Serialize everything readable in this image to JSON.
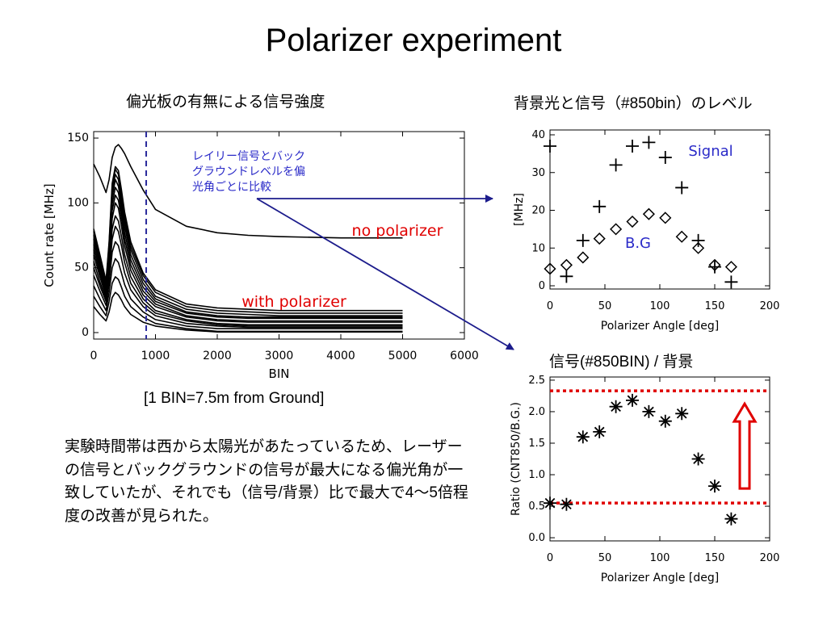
{
  "slide": {
    "title": "Polarizer experiment",
    "left_heading": "偏光板の有無による信号強度",
    "right_heading": "背景光と信号（#850bin）のレベル",
    "ratio_heading": "信号(#850BIN)  /  背景",
    "bin_note": "[1 BIN=7.5m from Ground]",
    "body_text": "実験時間帯は西から太陽光があたっているため、レーザーの信号とバックグラウンドの信号が最大になる偏光角が一致していたが、それでも（信号/背景）比で最大で4～5倍程度の改善が見られた。"
  },
  "chart_data": [
    {
      "id": "count-rate",
      "type": "line",
      "xlabel": "BIN",
      "ylabel": "Count rate [MHz]",
      "xlim": [
        0,
        6000
      ],
      "ylim": [
        -5,
        155
      ],
      "xticks": [
        0,
        1000,
        2000,
        3000,
        4000,
        5000,
        6000
      ],
      "yticks": [
        0,
        50,
        100,
        150
      ],
      "x": [
        0,
        100,
        200,
        250,
        300,
        350,
        400,
        450,
        500,
        600,
        800,
        1000,
        1500,
        2000,
        2500,
        3000,
        4000,
        5000
      ],
      "reference_line_bin": 850,
      "annotations": {
        "comparison": "レイリー信号とバックグラウンドレベルを偏光角ごとに比較",
        "no_polarizer": "no polarizer",
        "with_polarizer": "with polarizer"
      },
      "series": [
        {
          "values": [
            130,
            120,
            108,
            118,
            135,
            143,
            145,
            142,
            138,
            128,
            110,
            95,
            82,
            77,
            75,
            74,
            73,
            73
          ]
        },
        {
          "values": [
            80,
            60,
            40,
            70,
            115,
            128,
            125,
            110,
            93,
            70,
            46,
            33,
            22,
            19,
            18,
            17,
            17,
            17
          ]
        },
        {
          "values": [
            78,
            58,
            38,
            68,
            112,
            126,
            122,
            106,
            90,
            67,
            44,
            31,
            20,
            17,
            16,
            15,
            15,
            15
          ]
        },
        {
          "values": [
            75,
            55,
            36,
            65,
            108,
            122,
            118,
            102,
            86,
            64,
            41,
            28,
            18,
            15,
            14,
            13,
            13,
            13
          ]
        },
        {
          "values": [
            72,
            52,
            34,
            62,
            104,
            118,
            113,
            98,
            82,
            60,
            38,
            26,
            16,
            13,
            12,
            12,
            12,
            12
          ]
        },
        {
          "values": [
            68,
            49,
            32,
            59,
            99,
            112,
            108,
            93,
            77,
            56,
            35,
            24,
            15,
            12,
            11,
            11,
            11,
            11
          ]
        },
        {
          "values": [
            64,
            46,
            30,
            55,
            94,
            106,
            102,
            88,
            72,
            52,
            32,
            22,
            13,
            10,
            9,
            9,
            9,
            9
          ]
        },
        {
          "values": [
            60,
            43,
            28,
            52,
            88,
            100,
            96,
            82,
            67,
            48,
            29,
            20,
            12,
            9,
            8,
            8,
            8,
            8
          ]
        },
        {
          "values": [
            55,
            39,
            26,
            47,
            80,
            90,
            86,
            74,
            60,
            43,
            26,
            17,
            10,
            7,
            6,
            6,
            6,
            6
          ]
        },
        {
          "values": [
            50,
            36,
            24,
            43,
            72,
            82,
            78,
            67,
            54,
            38,
            23,
            15,
            9,
            6,
            5,
            5,
            5,
            5
          ]
        },
        {
          "values": [
            44,
            32,
            21,
            38,
            62,
            70,
            67,
            57,
            46,
            33,
            20,
            13,
            7,
            5,
            4,
            4,
            4,
            4
          ]
        },
        {
          "values": [
            36,
            26,
            17,
            31,
            50,
            57,
            54,
            46,
            37,
            26,
            16,
            10,
            5,
            3,
            3,
            3,
            3,
            3
          ]
        },
        {
          "values": [
            28,
            20,
            13,
            24,
            38,
            43,
            41,
            35,
            28,
            20,
            12,
            7,
            3,
            1,
            1,
            1,
            1,
            1
          ]
        },
        {
          "values": [
            20,
            14,
            9,
            16,
            27,
            31,
            29,
            25,
            20,
            14,
            8,
            5,
            2,
            0.5,
            0.5,
            0.5,
            0.5,
            0.5
          ]
        }
      ]
    },
    {
      "id": "levels",
      "type": "scatter",
      "xlabel": "Polarizer Angle [deg]",
      "ylabel": "[MHz]",
      "xlim": [
        0,
        200
      ],
      "ylim": [
        0,
        40
      ],
      "xticks": [
        0,
        50,
        100,
        150,
        200
      ],
      "yticks": [
        0,
        10,
        20,
        30,
        40
      ],
      "series": [
        {
          "name": "Signal",
          "marker": "plus",
          "x": [
            0,
            15,
            30,
            45,
            60,
            75,
            90,
            105,
            120,
            135,
            150,
            165
          ],
          "y": [
            37,
            2.5,
            12,
            21,
            32,
            37,
            38,
            34,
            26,
            12,
            5,
            1
          ]
        },
        {
          "name": "B.G",
          "marker": "diamond",
          "x": [
            0,
            15,
            30,
            45,
            60,
            75,
            90,
            105,
            120,
            135,
            150,
            165
          ],
          "y": [
            4.5,
            5.5,
            7.5,
            12.5,
            15,
            17,
            19,
            18,
            13,
            10,
            5.5,
            5
          ]
        }
      ]
    },
    {
      "id": "ratio",
      "type": "scatter",
      "xlabel": "Polarizer Angle [deg]",
      "ylabel": "Ratio (CNT850/B.G.)",
      "xlim": [
        0,
        200
      ],
      "ylim": [
        -0.05,
        2.55
      ],
      "xticks": [
        0,
        50,
        100,
        150,
        200
      ],
      "yticks": [
        0.0,
        0.5,
        1.0,
        1.5,
        2.0,
        2.5
      ],
      "ytick_labels": [
        "0.0",
        "0.5",
        "1.0",
        "1.5",
        "2.0",
        "2.5"
      ],
      "reference_lines": [
        2.33,
        0.55
      ],
      "reference_color": "#e00000",
      "series": [
        {
          "marker": "asterisk",
          "x": [
            0,
            15,
            30,
            45,
            60,
            75,
            90,
            105,
            120,
            135,
            150,
            165
          ],
          "y": [
            0.55,
            0.53,
            1.6,
            1.68,
            2.08,
            2.18,
            2.0,
            1.85,
            1.97,
            1.25,
            0.82,
            0.3
          ]
        }
      ]
    }
  ],
  "colors": {
    "arrow": "#1c1c8c",
    "annotation_blue": "#2a2ac8",
    "annotation_red": "#e00000",
    "ref_red": "#e00000"
  }
}
